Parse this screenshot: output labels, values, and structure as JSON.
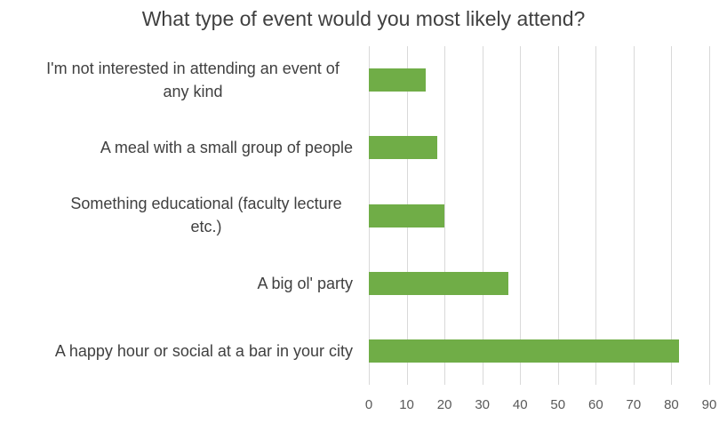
{
  "chart_data": {
    "type": "bar",
    "orientation": "horizontal",
    "title": "What type of event would you most likely attend?",
    "categories": [
      "I'm not interested in attending an event of any kind",
      "A meal with a small group of people",
      "Something educational (faculty lecture etc.)",
      "A big ol' party",
      "A happy hour or social at a bar in your city"
    ],
    "values": [
      15,
      18,
      20,
      37,
      82
    ],
    "xlabel": "",
    "ylabel": "",
    "xlim": [
      0,
      90
    ],
    "xticks": [
      0,
      10,
      20,
      30,
      40,
      50,
      60,
      70,
      80,
      90
    ],
    "grid": "vertical",
    "legend": null,
    "colors": {
      "bar": "#70AD47",
      "gridline": "#D9D9D9",
      "title_text": "#404040",
      "category_text": "#404040",
      "tick_text": "#595959",
      "background": "#FFFFFF"
    }
  }
}
